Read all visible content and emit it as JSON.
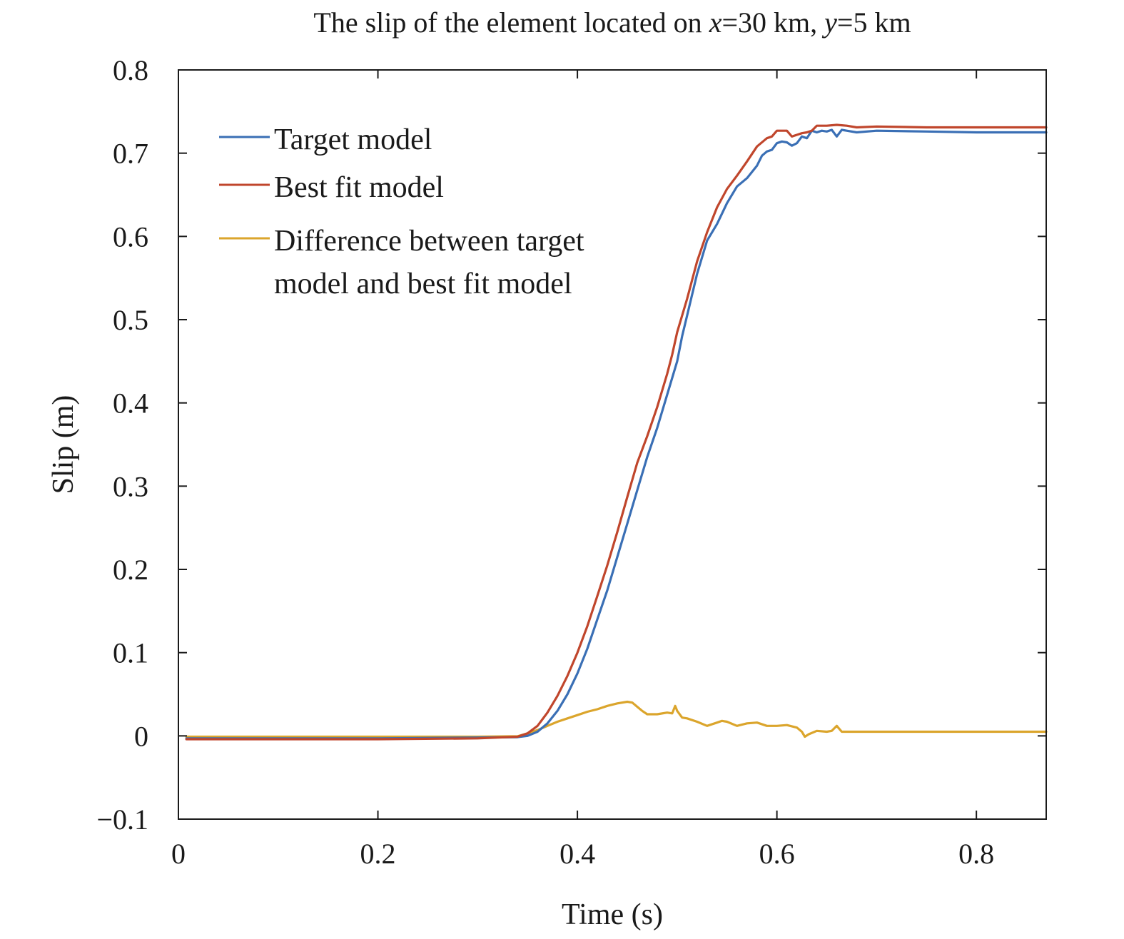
{
  "chart_data": {
    "type": "line",
    "title": {
      "prefix": "The slip of the element located on ",
      "x_var": "x",
      "x_val": "=30 km, ",
      "y_var": "y",
      "y_val": "=5 km"
    },
    "xlabel": "Time (s)",
    "ylabel": "Slip (m)",
    "xlim": [
      0,
      0.87
    ],
    "ylim": [
      -0.1,
      0.8
    ],
    "xticks": [
      0,
      0.2,
      0.4,
      0.6,
      0.8
    ],
    "xtick_labels": [
      "0",
      "0.2",
      "0.4",
      "0.6",
      "0.8"
    ],
    "yticks": [
      -0.1,
      0,
      0.1,
      0.2,
      0.3,
      0.4,
      0.5,
      0.6,
      0.7,
      0.8
    ],
    "ytick_labels": [
      "−0.1",
      "0",
      "0.1",
      "0.2",
      "0.3",
      "0.4",
      "0.5",
      "0.6",
      "0.7",
      "0.8"
    ],
    "grid": false,
    "legend_position": "top-left",
    "series": [
      {
        "name": "Target model",
        "color": "#3a6fb5",
        "points": [
          [
            0.008,
            -0.003
          ],
          [
            0.1,
            -0.003
          ],
          [
            0.2,
            -0.003
          ],
          [
            0.3,
            -0.002
          ],
          [
            0.34,
            -0.0015
          ],
          [
            0.35,
            0.0
          ],
          [
            0.36,
            0.005
          ],
          [
            0.37,
            0.015
          ],
          [
            0.38,
            0.03
          ],
          [
            0.39,
            0.05
          ],
          [
            0.4,
            0.075
          ],
          [
            0.41,
            0.105
          ],
          [
            0.42,
            0.14
          ],
          [
            0.43,
            0.175
          ],
          [
            0.44,
            0.215
          ],
          [
            0.45,
            0.255
          ],
          [
            0.46,
            0.295
          ],
          [
            0.47,
            0.335
          ],
          [
            0.48,
            0.37
          ],
          [
            0.49,
            0.41
          ],
          [
            0.5,
            0.45
          ],
          [
            0.505,
            0.48
          ],
          [
            0.51,
            0.505
          ],
          [
            0.52,
            0.555
          ],
          [
            0.53,
            0.595
          ],
          [
            0.54,
            0.615
          ],
          [
            0.55,
            0.64
          ],
          [
            0.56,
            0.66
          ],
          [
            0.57,
            0.67
          ],
          [
            0.58,
            0.685
          ],
          [
            0.585,
            0.697
          ],
          [
            0.59,
            0.702
          ],
          [
            0.595,
            0.704
          ],
          [
            0.6,
            0.712
          ],
          [
            0.605,
            0.714
          ],
          [
            0.61,
            0.713
          ],
          [
            0.615,
            0.709
          ],
          [
            0.62,
            0.712
          ],
          [
            0.625,
            0.72
          ],
          [
            0.63,
            0.718
          ],
          [
            0.635,
            0.727
          ],
          [
            0.64,
            0.725
          ],
          [
            0.645,
            0.727
          ],
          [
            0.65,
            0.726
          ],
          [
            0.655,
            0.728
          ],
          [
            0.66,
            0.72
          ],
          [
            0.665,
            0.728
          ],
          [
            0.67,
            0.727
          ],
          [
            0.68,
            0.725
          ],
          [
            0.7,
            0.727
          ],
          [
            0.75,
            0.726
          ],
          [
            0.8,
            0.725
          ],
          [
            0.87,
            0.725
          ]
        ]
      },
      {
        "name": "Best fit model",
        "color": "#c0462c",
        "points": [
          [
            0.008,
            -0.004
          ],
          [
            0.1,
            -0.004
          ],
          [
            0.2,
            -0.004
          ],
          [
            0.3,
            -0.003
          ],
          [
            0.34,
            -0.001
          ],
          [
            0.35,
            0.003
          ],
          [
            0.36,
            0.012
          ],
          [
            0.37,
            0.028
          ],
          [
            0.38,
            0.048
          ],
          [
            0.39,
            0.072
          ],
          [
            0.4,
            0.1
          ],
          [
            0.41,
            0.132
          ],
          [
            0.42,
            0.168
          ],
          [
            0.43,
            0.205
          ],
          [
            0.44,
            0.245
          ],
          [
            0.45,
            0.287
          ],
          [
            0.46,
            0.328
          ],
          [
            0.47,
            0.36
          ],
          [
            0.48,
            0.395
          ],
          [
            0.49,
            0.435
          ],
          [
            0.495,
            0.458
          ],
          [
            0.5,
            0.485
          ],
          [
            0.51,
            0.525
          ],
          [
            0.52,
            0.57
          ],
          [
            0.53,
            0.605
          ],
          [
            0.54,
            0.635
          ],
          [
            0.55,
            0.657
          ],
          [
            0.56,
            0.673
          ],
          [
            0.57,
            0.69
          ],
          [
            0.58,
            0.708
          ],
          [
            0.59,
            0.718
          ],
          [
            0.595,
            0.72
          ],
          [
            0.6,
            0.727
          ],
          [
            0.61,
            0.727
          ],
          [
            0.615,
            0.72
          ],
          [
            0.62,
            0.722
          ],
          [
            0.625,
            0.724
          ],
          [
            0.63,
            0.725
          ],
          [
            0.635,
            0.727
          ],
          [
            0.64,
            0.733
          ],
          [
            0.65,
            0.733
          ],
          [
            0.66,
            0.734
          ],
          [
            0.67,
            0.733
          ],
          [
            0.68,
            0.731
          ],
          [
            0.7,
            0.732
          ],
          [
            0.75,
            0.731
          ],
          [
            0.8,
            0.731
          ],
          [
            0.87,
            0.731
          ]
        ]
      },
      {
        "name": "Difference between target model and best fit model",
        "legend_lines": [
          "Difference between target",
          "model and best fit model"
        ],
        "color": "#dba52c",
        "points": [
          [
            0.008,
            -0.001
          ],
          [
            0.1,
            -0.001
          ],
          [
            0.2,
            -0.001
          ],
          [
            0.3,
            -0.001
          ],
          [
            0.34,
            -0.0005
          ],
          [
            0.35,
            0.003
          ],
          [
            0.36,
            0.007
          ],
          [
            0.37,
            0.012
          ],
          [
            0.38,
            0.017
          ],
          [
            0.39,
            0.021
          ],
          [
            0.4,
            0.025
          ],
          [
            0.41,
            0.029
          ],
          [
            0.42,
            0.032
          ],
          [
            0.43,
            0.036
          ],
          [
            0.44,
            0.039
          ],
          [
            0.45,
            0.041
          ],
          [
            0.455,
            0.04
          ],
          [
            0.46,
            0.035
          ],
          [
            0.465,
            0.03
          ],
          [
            0.47,
            0.026
          ],
          [
            0.48,
            0.026
          ],
          [
            0.49,
            0.028
          ],
          [
            0.495,
            0.027
          ],
          [
            0.498,
            0.036
          ],
          [
            0.5,
            0.03
          ],
          [
            0.505,
            0.022
          ],
          [
            0.51,
            0.021
          ],
          [
            0.52,
            0.017
          ],
          [
            0.53,
            0.012
          ],
          [
            0.54,
            0.016
          ],
          [
            0.545,
            0.018
          ],
          [
            0.55,
            0.017
          ],
          [
            0.56,
            0.012
          ],
          [
            0.57,
            0.015
          ],
          [
            0.58,
            0.016
          ],
          [
            0.59,
            0.012
          ],
          [
            0.6,
            0.012
          ],
          [
            0.61,
            0.013
          ],
          [
            0.62,
            0.01
          ],
          [
            0.625,
            0.005
          ],
          [
            0.628,
            -0.001
          ],
          [
            0.632,
            0.002
          ],
          [
            0.64,
            0.006
          ],
          [
            0.65,
            0.005
          ],
          [
            0.655,
            0.006
          ],
          [
            0.66,
            0.012
          ],
          [
            0.665,
            0.005
          ],
          [
            0.68,
            0.005
          ],
          [
            0.7,
            0.005
          ],
          [
            0.75,
            0.005
          ],
          [
            0.8,
            0.005
          ],
          [
            0.87,
            0.005
          ]
        ]
      }
    ]
  }
}
